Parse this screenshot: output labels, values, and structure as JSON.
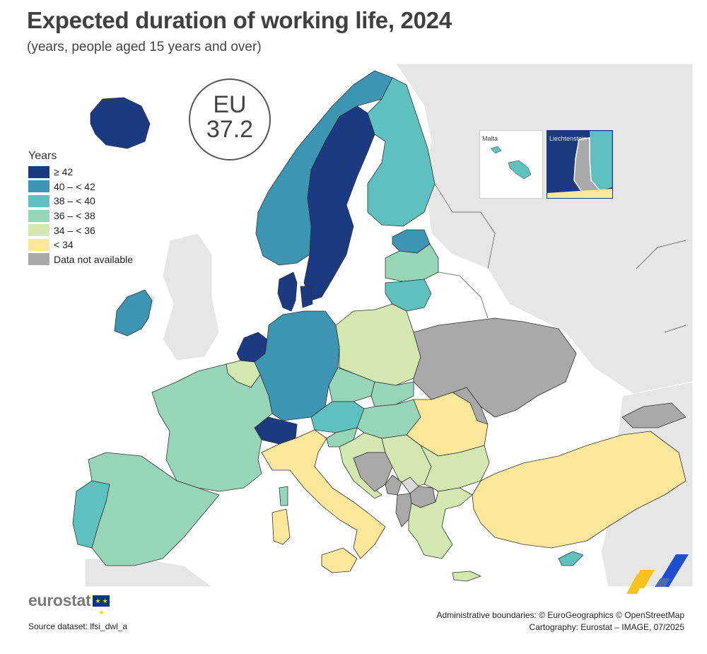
{
  "header": {
    "title": "Expected duration of working life, 2024",
    "subtitle": "(years, people aged 15 years and over)"
  },
  "eu_badge": {
    "label": "EU",
    "value": "37.2"
  },
  "legend": {
    "title": "Years",
    "items": [
      {
        "label": "≥ 42",
        "color": "#1b3a82"
      },
      {
        "label": "40 – < 42",
        "color": "#3c95b3"
      },
      {
        "label": "38 – < 40",
        "color": "#5fc1bf"
      },
      {
        "label": "36 – < 38",
        "color": "#97d5b9"
      },
      {
        "label": "34 – < 36",
        "color": "#d3e8b0"
      },
      {
        "label": "< 34",
        "color": "#fde79b"
      },
      {
        "label": "Data not available",
        "color": "#a9a9a9"
      }
    ]
  },
  "insets": {
    "malta": "Malta",
    "liechtenstein": "Liechtenstein"
  },
  "countries": [
    {
      "id": "iceland",
      "class": "≥ 42"
    },
    {
      "id": "norway",
      "class": "40 – < 42"
    },
    {
      "id": "sweden",
      "class": "≥ 42"
    },
    {
      "id": "finland",
      "class": "38 – < 40"
    },
    {
      "id": "estonia",
      "class": "40 – < 42"
    },
    {
      "id": "latvia",
      "class": "36 – < 38"
    },
    {
      "id": "lithuania",
      "class": "38 – < 40"
    },
    {
      "id": "denmark",
      "class": "≥ 42"
    },
    {
      "id": "ireland",
      "class": "40 – < 42"
    },
    {
      "id": "netherlands",
      "class": "≥ 42"
    },
    {
      "id": "belgium",
      "class": "34 – < 36"
    },
    {
      "id": "germany",
      "class": "40 – < 42"
    },
    {
      "id": "poland",
      "class": "34 – < 36"
    },
    {
      "id": "czechia",
      "class": "36 – < 38"
    },
    {
      "id": "slovakia",
      "class": "36 – < 38"
    },
    {
      "id": "austria",
      "class": "38 – < 40"
    },
    {
      "id": "hungary",
      "class": "36 – < 38"
    },
    {
      "id": "switzerland",
      "class": "≥ 42"
    },
    {
      "id": "france",
      "class": "36 – < 38"
    },
    {
      "id": "portugal",
      "class": "38 – < 40"
    },
    {
      "id": "spain",
      "class": "36 – < 38"
    },
    {
      "id": "italy",
      "class": "< 34"
    },
    {
      "id": "slovenia",
      "class": "36 – < 38"
    },
    {
      "id": "croatia",
      "class": "34 – < 36"
    },
    {
      "id": "serbia",
      "class": "34 – < 36"
    },
    {
      "id": "romania",
      "class": "< 34"
    },
    {
      "id": "bulgaria",
      "class": "34 – < 36"
    },
    {
      "id": "greece",
      "class": "34 – < 36"
    },
    {
      "id": "turkiye",
      "class": "< 34"
    },
    {
      "id": "cyprus",
      "class": "38 – < 40"
    },
    {
      "id": "malta",
      "class": "38 – < 40"
    },
    {
      "id": "liechtenstein",
      "class": "Data not available"
    },
    {
      "id": "ukraine",
      "class": "Data not available"
    },
    {
      "id": "moldova",
      "class": "Data not available"
    },
    {
      "id": "bosnia",
      "class": "Data not available"
    },
    {
      "id": "montenegro",
      "class": "Data not available"
    },
    {
      "id": "albania",
      "class": "Data not available"
    },
    {
      "id": "north-macedonia",
      "class": "Data not available"
    },
    {
      "id": "georgia",
      "class": "Data not available"
    }
  ],
  "footer": {
    "logo_text": "eurostat",
    "source": "Source dataset: lfsi_dwl_a",
    "credits_line1": "Administrative boundaries: © EuroGeographics © OpenStreetMap",
    "credits_line2": "Cartography: Eurostat – IMAGE, 07/2025"
  }
}
